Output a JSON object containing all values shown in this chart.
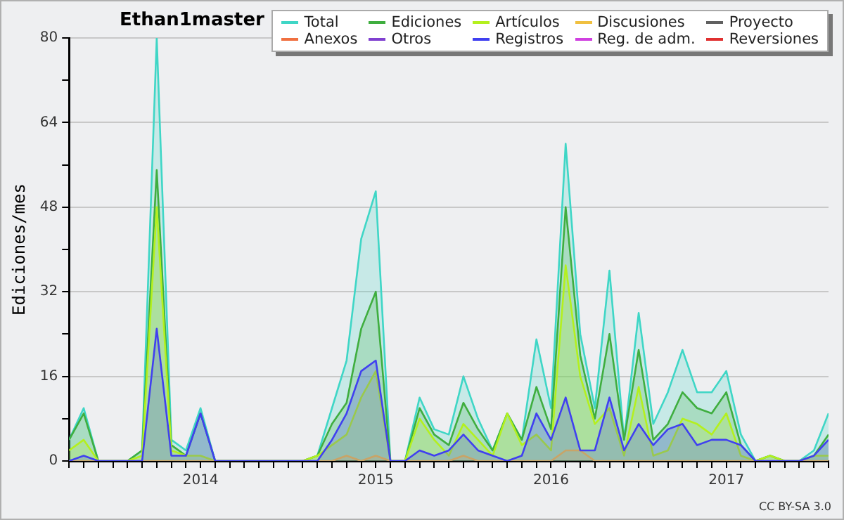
{
  "chart_data": {
    "type": "area",
    "title": "Ethan1master",
    "ylabel": "Ediciones/mes",
    "x": [
      "2013-04",
      "2013-05",
      "2013-06",
      "2013-07",
      "2013-08",
      "2013-09",
      "2013-10",
      "2013-11",
      "2013-12",
      "2014-01",
      "2014-02",
      "2014-03",
      "2014-04",
      "2014-05",
      "2014-06",
      "2014-07",
      "2014-08",
      "2014-09",
      "2014-10",
      "2014-11",
      "2014-12",
      "2015-01",
      "2015-02",
      "2015-03",
      "2015-04",
      "2015-05",
      "2015-06",
      "2015-07",
      "2015-08",
      "2015-09",
      "2015-10",
      "2015-11",
      "2015-12",
      "2016-01",
      "2016-02",
      "2016-03",
      "2016-04",
      "2016-05",
      "2016-06",
      "2016-07",
      "2016-08",
      "2016-09",
      "2016-10",
      "2016-11",
      "2016-12",
      "2017-01",
      "2017-02",
      "2017-03",
      "2017-04",
      "2017-05",
      "2017-06",
      "2017-07",
      "2017-08"
    ],
    "xlim": [
      "2013-04",
      "2017-08"
    ],
    "xticks": [
      {
        "value": "2013-04",
        "label": null
      },
      {
        "value": "2013-05",
        "label": null
      },
      {
        "value": "2013-06",
        "label": null
      },
      {
        "value": "2013-07",
        "label": null
      },
      {
        "value": "2013-08",
        "label": null
      },
      {
        "value": "2013-09",
        "label": null
      },
      {
        "value": "2013-10",
        "label": null
      },
      {
        "value": "2013-11",
        "label": null
      },
      {
        "value": "2013-12",
        "label": null
      },
      {
        "value": "2014-01",
        "label": "2014"
      },
      {
        "value": "2014-02",
        "label": null
      },
      {
        "value": "2014-03",
        "label": null
      },
      {
        "value": "2014-04",
        "label": null
      },
      {
        "value": "2014-05",
        "label": null
      },
      {
        "value": "2014-06",
        "label": null
      },
      {
        "value": "2014-07",
        "label": null
      },
      {
        "value": "2014-08",
        "label": null
      },
      {
        "value": "2014-09",
        "label": null
      },
      {
        "value": "2014-10",
        "label": null
      },
      {
        "value": "2014-11",
        "label": null
      },
      {
        "value": "2014-12",
        "label": null
      },
      {
        "value": "2015-01",
        "label": "2015"
      },
      {
        "value": "2015-02",
        "label": null
      },
      {
        "value": "2015-03",
        "label": null
      },
      {
        "value": "2015-04",
        "label": null
      },
      {
        "value": "2015-05",
        "label": null
      },
      {
        "value": "2015-06",
        "label": null
      },
      {
        "value": "2015-07",
        "label": null
      },
      {
        "value": "2015-08",
        "label": null
      },
      {
        "value": "2015-09",
        "label": null
      },
      {
        "value": "2015-10",
        "label": null
      },
      {
        "value": "2015-11",
        "label": null
      },
      {
        "value": "2015-12",
        "label": null
      },
      {
        "value": "2016-01",
        "label": "2016"
      },
      {
        "value": "2016-02",
        "label": null
      },
      {
        "value": "2016-03",
        "label": null
      },
      {
        "value": "2016-04",
        "label": null
      },
      {
        "value": "2016-05",
        "label": null
      },
      {
        "value": "2016-06",
        "label": null
      },
      {
        "value": "2016-07",
        "label": null
      },
      {
        "value": "2016-08",
        "label": null
      },
      {
        "value": "2016-09",
        "label": null
      },
      {
        "value": "2016-10",
        "label": null
      },
      {
        "value": "2016-11",
        "label": null
      },
      {
        "value": "2016-12",
        "label": null
      },
      {
        "value": "2017-01",
        "label": "2017"
      },
      {
        "value": "2017-02",
        "label": null
      },
      {
        "value": "2017-03",
        "label": null
      },
      {
        "value": "2017-04",
        "label": null
      },
      {
        "value": "2017-05",
        "label": null
      },
      {
        "value": "2017-06",
        "label": null
      },
      {
        "value": "2017-07",
        "label": null
      },
      {
        "value": "2017-08",
        "label": null
      }
    ],
    "ylim": [
      0,
      80
    ],
    "yticks": [
      0,
      {
        "value": 8,
        "label": null
      },
      16,
      {
        "value": 24,
        "label": null
      },
      32,
      {
        "value": 40,
        "label": null
      },
      48,
      {
        "value": 56,
        "label": null
      },
      64,
      {
        "value": 72,
        "label": null
      },
      80
    ],
    "grid": "y",
    "legend": "top right",
    "marker": "none",
    "series": [
      {
        "name": "Total",
        "color": "#3fd6c6",
        "values": [
          4,
          10,
          0,
          0,
          0,
          2,
          80,
          4,
          2,
          10,
          0,
          0,
          0,
          0,
          0,
          0,
          0,
          1,
          10,
          19,
          42,
          51,
          0,
          0,
          12,
          6,
          5,
          16,
          8,
          2,
          9,
          4,
          23,
          10,
          60,
          24,
          10,
          36,
          4,
          28,
          7,
          13,
          21,
          13,
          13,
          17,
          5,
          0,
          1,
          0,
          0,
          2,
          9
        ]
      },
      {
        "name": "Ediciones",
        "color": "#3fae3f",
        "values": [
          4,
          9,
          0,
          0,
          0,
          2,
          55,
          3,
          1,
          9,
          0,
          0,
          0,
          0,
          0,
          0,
          0,
          1,
          7,
          11,
          25,
          32,
          0,
          0,
          10,
          5,
          3,
          11,
          6,
          2,
          9,
          4,
          14,
          6,
          48,
          20,
          8,
          24,
          4,
          21,
          4,
          7,
          13,
          10,
          9,
          13,
          3,
          0,
          1,
          0,
          0,
          1,
          5
        ]
      },
      {
        "name": "Artículos",
        "color": "#b4f01e",
        "values": [
          2,
          4,
          0,
          0,
          0,
          1,
          48,
          2,
          1,
          1,
          0,
          0,
          0,
          0,
          0,
          0,
          0,
          1,
          3,
          5,
          12,
          17,
          0,
          0,
          8,
          4,
          1,
          7,
          4,
          1,
          9,
          3,
          5,
          2,
          37,
          16,
          7,
          10,
          1,
          14,
          1,
          2,
          8,
          7,
          5,
          9,
          1,
          0,
          1,
          0,
          0,
          1,
          1
        ]
      },
      {
        "name": "Discusiones",
        "color": "#f0c040",
        "values": [
          0,
          0,
          0,
          0,
          0,
          0,
          0,
          0,
          0,
          0,
          0,
          0,
          0,
          0,
          0,
          0,
          0,
          0,
          0,
          1,
          0,
          1,
          0,
          0,
          0,
          0,
          0,
          1,
          0,
          0,
          0,
          0,
          0,
          0,
          2,
          2,
          0,
          0,
          0,
          0,
          0,
          0,
          0,
          0,
          0,
          0,
          0,
          0,
          0,
          0,
          0,
          0,
          0
        ]
      },
      {
        "name": "Proyecto",
        "color": "#606060",
        "values": [
          null,
          null,
          null,
          null,
          null,
          null,
          null,
          null,
          null,
          null,
          null,
          null,
          null,
          null,
          null,
          null,
          null,
          null,
          null,
          null,
          null,
          null,
          null,
          null,
          null,
          null,
          null,
          null,
          null,
          null,
          null,
          null,
          null,
          null,
          null,
          null,
          null,
          null,
          null,
          null,
          null,
          null,
          null,
          null,
          null,
          null,
          null,
          null,
          null,
          null,
          null,
          null,
          null
        ]
      },
      {
        "name": "Anexos",
        "color": "#f07040",
        "values": [
          null,
          null,
          null,
          null,
          null,
          null,
          null,
          null,
          null,
          null,
          null,
          null,
          null,
          null,
          null,
          null,
          null,
          null,
          null,
          null,
          null,
          null,
          null,
          null,
          null,
          null,
          null,
          null,
          null,
          null,
          null,
          null,
          null,
          null,
          null,
          null,
          null,
          null,
          null,
          null,
          null,
          null,
          null,
          null,
          null,
          null,
          null,
          null,
          null,
          null,
          null,
          null,
          null
        ]
      },
      {
        "name": "Otros",
        "color": "#8040d0",
        "values": [
          null,
          null,
          null,
          null,
          null,
          null,
          null,
          null,
          null,
          null,
          null,
          null,
          null,
          null,
          null,
          null,
          null,
          null,
          null,
          null,
          null,
          null,
          null,
          null,
          null,
          null,
          null,
          null,
          null,
          null,
          null,
          null,
          null,
          null,
          null,
          null,
          null,
          null,
          null,
          null,
          null,
          null,
          null,
          null,
          null,
          null,
          null,
          null,
          null,
          null,
          null,
          null,
          null
        ]
      },
      {
        "name": "Registros",
        "color": "#4040f0",
        "values": [
          0,
          1,
          0,
          0,
          0,
          0,
          25,
          1,
          1,
          9,
          0,
          0,
          0,
          0,
          0,
          0,
          0,
          0,
          4,
          9,
          17,
          19,
          0,
          0,
          2,
          1,
          2,
          5,
          2,
          1,
          0,
          1,
          9,
          4,
          12,
          2,
          2,
          12,
          2,
          7,
          3,
          6,
          7,
          3,
          4,
          4,
          3,
          0,
          0,
          0,
          0,
          1,
          4
        ]
      },
      {
        "name": "Reg. de adm.",
        "color": "#d040e0",
        "values": [
          null,
          null,
          null,
          null,
          null,
          null,
          null,
          null,
          null,
          null,
          null,
          null,
          null,
          null,
          null,
          null,
          null,
          null,
          null,
          null,
          null,
          null,
          null,
          null,
          null,
          null,
          null,
          null,
          null,
          null,
          null,
          null,
          null,
          null,
          null,
          null,
          null,
          null,
          null,
          null,
          null,
          null,
          null,
          null,
          null,
          null,
          null,
          null,
          null,
          null,
          null,
          null,
          null
        ]
      },
      {
        "name": "Reversiones",
        "color": "#e03030",
        "values": [
          null,
          null,
          null,
          null,
          null,
          null,
          null,
          null,
          null,
          null,
          null,
          null,
          null,
          null,
          null,
          null,
          null,
          null,
          null,
          null,
          null,
          null,
          null,
          null,
          null,
          null,
          null,
          null,
          null,
          null,
          null,
          null,
          null,
          null,
          null,
          null,
          null,
          null,
          null,
          null,
          null,
          null,
          null,
          null,
          null,
          null,
          null,
          null,
          null,
          null,
          null,
          null,
          null
        ]
      }
    ],
    "annotations": [
      "CC BY-SA 3.0"
    ]
  }
}
